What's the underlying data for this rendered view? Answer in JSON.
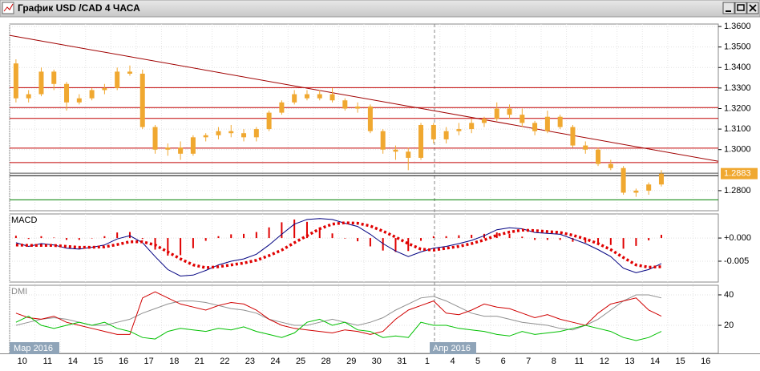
{
  "window": {
    "title": "График USD /CAD 4 ЧАСА"
  },
  "months": [
    "Мар 2016",
    "Апр 2016"
  ],
  "chart_data": [
    {
      "type": "candlestick",
      "color": "#f0a830",
      "categories": [
        "10",
        "11",
        "14",
        "15",
        "16",
        "17",
        "18",
        "21",
        "22",
        "23",
        "24",
        "25",
        "28",
        "29",
        "30",
        "31",
        "1",
        "4",
        "5",
        "6",
        "7",
        "8",
        "11",
        "12",
        "13",
        "14",
        "15",
        "16"
      ],
      "ohlc": [
        [
          1.342,
          1.344,
          1.323,
          1.325
        ],
        [
          1.325,
          1.329,
          1.323,
          1.327
        ],
        [
          1.327,
          1.34,
          1.326,
          1.338
        ],
        [
          1.338,
          1.339,
          1.329,
          1.332
        ],
        [
          1.332,
          1.333,
          1.319,
          1.323
        ],
        [
          1.323,
          1.327,
          1.322,
          1.325
        ],
        [
          1.325,
          1.33,
          1.324,
          1.329
        ],
        [
          1.329,
          1.332,
          1.327,
          1.33
        ],
        [
          1.33,
          1.34,
          1.329,
          1.338
        ],
        [
          1.338,
          1.341,
          1.336,
          1.337
        ],
        [
          1.337,
          1.339,
          1.31,
          1.311
        ],
        [
          1.311,
          1.312,
          1.298,
          1.3
        ],
        [
          1.3,
          1.303,
          1.297,
          1.301
        ],
        [
          1.301,
          1.304,
          1.295,
          1.298
        ],
        [
          1.298,
          1.307,
          1.297,
          1.306
        ],
        [
          1.306,
          1.308,
          1.304,
          1.307
        ],
        [
          1.307,
          1.311,
          1.305,
          1.309
        ],
        [
          1.309,
          1.312,
          1.306,
          1.308
        ],
        [
          1.308,
          1.31,
          1.304,
          1.306
        ],
        [
          1.306,
          1.311,
          1.304,
          1.31
        ],
        [
          1.31,
          1.319,
          1.309,
          1.318
        ],
        [
          1.318,
          1.324,
          1.317,
          1.323
        ],
        [
          1.323,
          1.329,
          1.322,
          1.327
        ],
        [
          1.327,
          1.329,
          1.324,
          1.325
        ],
        [
          1.325,
          1.329,
          1.324,
          1.327
        ],
        [
          1.327,
          1.33,
          1.323,
          1.324
        ],
        [
          1.324,
          1.325,
          1.319,
          1.32
        ],
        [
          1.32,
          1.323,
          1.318,
          1.321
        ],
        [
          1.321,
          1.322,
          1.308,
          1.309
        ],
        [
          1.309,
          1.31,
          1.298,
          1.3
        ],
        [
          1.3,
          1.302,
          1.295,
          1.299
        ],
        [
          1.299,
          1.301,
          1.29,
          1.296
        ],
        [
          1.296,
          1.313,
          1.295,
          1.312
        ],
        [
          1.312,
          1.313,
          1.303,
          1.305
        ],
        [
          1.305,
          1.311,
          1.303,
          1.309
        ],
        [
          1.309,
          1.313,
          1.307,
          1.31
        ],
        [
          1.31,
          1.315,
          1.308,
          1.313
        ],
        [
          1.313,
          1.316,
          1.311,
          1.315
        ],
        [
          1.315,
          1.323,
          1.314,
          1.32
        ],
        [
          1.32,
          1.322,
          1.315,
          1.317
        ],
        [
          1.317,
          1.32,
          1.311,
          1.313
        ],
        [
          1.313,
          1.314,
          1.307,
          1.309
        ],
        [
          1.309,
          1.319,
          1.308,
          1.316
        ],
        [
          1.316,
          1.317,
          1.31,
          1.311
        ],
        [
          1.311,
          1.312,
          1.301,
          1.302
        ],
        [
          1.302,
          1.304,
          1.298,
          1.3
        ],
        [
          1.3,
          1.301,
          1.292,
          1.293
        ],
        [
          1.293,
          1.295,
          1.29,
          1.291
        ],
        [
          1.291,
          1.292,
          1.278,
          1.279
        ],
        [
          1.279,
          1.281,
          1.277,
          1.28
        ],
        [
          1.28,
          1.284,
          1.278,
          1.283
        ],
        [
          1.283,
          1.29,
          1.282,
          1.2883
        ]
      ],
      "ylim": [
        1.2702,
        1.3612
      ],
      "yticks": [
        {
          "value": 1.36,
          "label": "1.3600"
        },
        {
          "value": 1.35,
          "label": "1.3500"
        },
        {
          "value": 1.34,
          "label": "1.3400"
        },
        {
          "value": 1.33,
          "label": "1.3300"
        },
        {
          "value": 1.32,
          "label": "1.3200"
        },
        {
          "value": 1.31,
          "label": "1.3100"
        },
        {
          "value": 1.3,
          "label": "1.3000"
        },
        {
          "value": 1.28,
          "label": "1.2800"
        }
      ],
      "levels": [
        {
          "value": 1.3302,
          "color": "#c00000"
        },
        {
          "value": 1.3205,
          "color": "#c00000"
        },
        {
          "value": 1.3152,
          "color": "#c00000"
        },
        {
          "value": 1.3007,
          "color": "#c00000"
        },
        {
          "value": 1.2937,
          "color": "#c00000"
        },
        {
          "value": 1.2885,
          "color": "#555555"
        },
        {
          "value": 1.2873,
          "color": "#000000"
        },
        {
          "value": 1.2755,
          "color": "#008000"
        }
      ],
      "trend_line": {
        "from": 1.3557,
        "to": 1.2943,
        "color": "#a00000"
      },
      "last_price": 1.2883
    },
    {
      "type": "macd",
      "title": "MACD",
      "ylim": [
        -0.0095,
        0.0052
      ],
      "yticks": [
        {
          "value": 0,
          "label": "+0.000"
        },
        {
          "value": -0.005,
          "label": "-0.005"
        }
      ],
      "macd": {
        "color": "#000080",
        "values": [
          -0.001,
          -0.0018,
          -0.0012,
          -0.0015,
          -0.0022,
          -0.0024,
          -0.002,
          -0.0015,
          -0.0002,
          0.0005,
          -0.001,
          -0.004,
          -0.0068,
          -0.0082,
          -0.008,
          -0.007,
          -0.0058,
          -0.005,
          -0.0045,
          -0.0035,
          -0.0015,
          0.0008,
          0.003,
          0.004,
          0.0042,
          0.004,
          0.0032,
          0.0025,
          0.0008,
          -0.0012,
          -0.0028,
          -0.004,
          -0.003,
          -0.0022,
          -0.0018,
          -0.0012,
          -0.0005,
          0.0005,
          0.0018,
          0.0022,
          0.002,
          0.0012,
          0.001,
          0.0008,
          -0.0002,
          -0.0012,
          -0.0025,
          -0.004,
          -0.0065,
          -0.0075,
          -0.0068,
          -0.0055
        ]
      },
      "signal": {
        "color": "#e00000",
        "values": [
          -0.0015,
          -0.0016,
          -0.0016,
          -0.0016,
          -0.0018,
          -0.002,
          -0.002,
          -0.0019,
          -0.0014,
          -0.0008,
          -0.0008,
          -0.0015,
          -0.003,
          -0.0045,
          -0.0058,
          -0.0064,
          -0.0062,
          -0.0058,
          -0.0054,
          -0.0048,
          -0.0038,
          -0.0026,
          -0.001,
          0.0005,
          0.002,
          0.003,
          0.0033,
          0.0032,
          0.0026,
          0.0015,
          0.0002,
          -0.0012,
          -0.0024,
          -0.0026,
          -0.0022,
          -0.0018,
          -0.0012,
          -0.0004,
          0.0006,
          0.0013,
          0.0017,
          0.0016,
          0.0014,
          0.0012,
          0.0006,
          -0.0002,
          -0.0012,
          -0.0025,
          -0.0042,
          -0.0058,
          -0.0063,
          -0.0062
        ]
      },
      "histogram": {
        "color": "#e00000",
        "values": [
          0.0005,
          -0.0002,
          0.0004,
          0.0001,
          -0.0004,
          -0.0004,
          0.0,
          0.0004,
          0.0012,
          0.0013,
          -0.0002,
          -0.0025,
          -0.0038,
          -0.0037,
          -0.0022,
          -0.0006,
          0.0004,
          0.0008,
          0.0009,
          0.0013,
          0.0023,
          0.0034,
          0.004,
          0.0035,
          0.0022,
          0.001,
          -0.0001,
          -0.0007,
          -0.0018,
          -0.0027,
          -0.003,
          -0.0028,
          -0.0006,
          0.0004,
          0.0004,
          0.0006,
          0.0007,
          0.0009,
          0.0012,
          0.0009,
          0.0003,
          -0.0004,
          -0.0004,
          -0.0004,
          -0.0008,
          -0.001,
          -0.0013,
          -0.0015,
          -0.0023,
          -0.0017,
          -0.0005,
          0.0007
        ]
      }
    },
    {
      "type": "line",
      "title": "DMI",
      "ylim": [
        1.6,
        46.3
      ],
      "yticks": [
        40,
        20
      ],
      "series": [
        {
          "color": "#909090",
          "values": [
            20,
            22,
            24,
            25,
            24,
            22,
            20,
            20,
            22,
            24,
            28,
            31,
            34,
            36,
            36,
            35,
            33,
            31,
            30,
            28,
            24,
            22,
            20,
            20,
            22,
            24,
            22,
            20,
            22,
            25,
            30,
            34,
            38,
            39,
            36,
            32,
            28,
            26,
            26,
            24,
            22,
            21,
            20,
            18,
            17,
            20,
            24,
            30,
            36,
            40,
            40,
            38
          ]
        },
        {
          "color": "#d00000",
          "values": [
            28,
            25,
            24,
            26,
            22,
            20,
            18,
            16,
            14,
            14,
            38,
            42,
            38,
            34,
            32,
            30,
            33,
            35,
            34,
            30,
            24,
            20,
            18,
            17,
            16,
            15,
            17,
            16,
            14,
            16,
            24,
            30,
            33,
            36,
            28,
            27,
            30,
            34,
            32,
            31,
            28,
            25,
            27,
            24,
            22,
            20,
            28,
            34,
            36,
            38,
            30,
            26
          ]
        },
        {
          "color": "#00c000",
          "values": [
            22,
            26,
            20,
            18,
            20,
            22,
            20,
            22,
            18,
            16,
            12,
            11,
            16,
            18,
            17,
            16,
            18,
            17,
            19,
            16,
            14,
            12,
            15,
            22,
            24,
            20,
            22,
            17,
            16,
            12,
            13,
            12,
            22,
            20,
            20,
            18,
            17,
            16,
            14,
            13,
            16,
            14,
            15,
            16,
            18,
            20,
            18,
            16,
            12,
            10,
            12,
            16
          ]
        }
      ]
    }
  ]
}
